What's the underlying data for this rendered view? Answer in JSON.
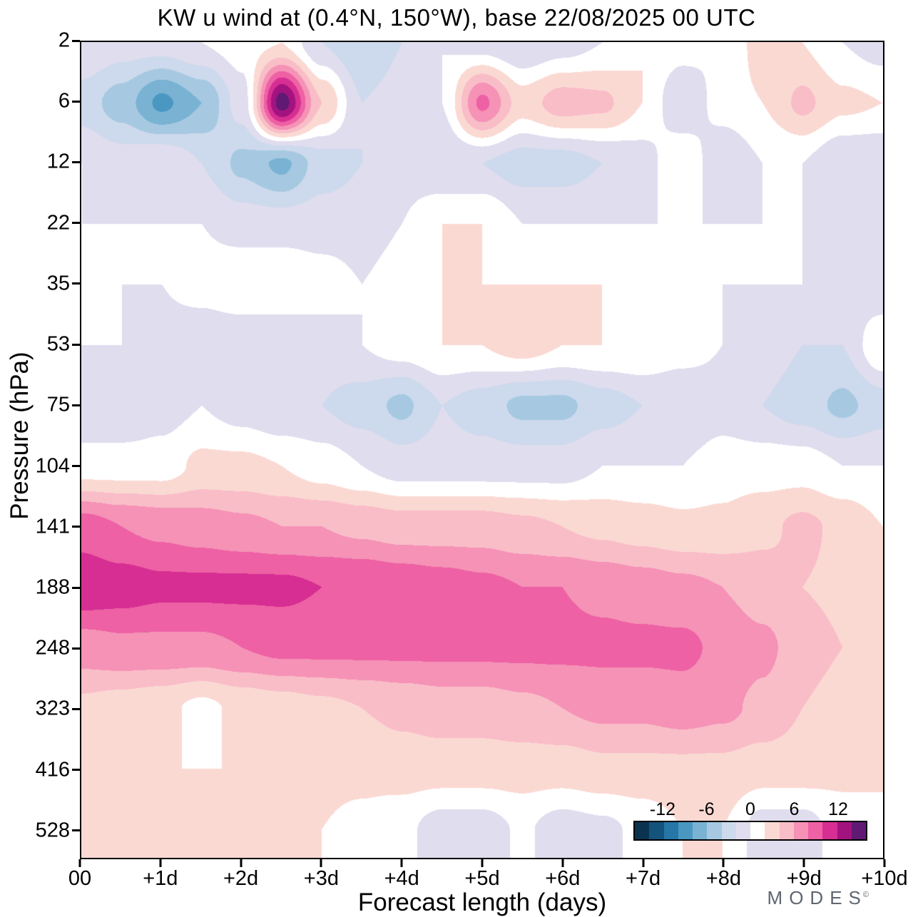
{
  "title": "KW u wind at (0.4°N, 150°W),  base 22/08/2025  00 UTC",
  "axes": {
    "x_label": "Forecast length (days)",
    "y_label": "Pressure (hPa)",
    "x_ticks": [
      "00",
      "+1d",
      "+2d",
      "+3d",
      "+4d",
      "+5d",
      "+6d",
      "+7d",
      "+8d",
      "+9d",
      "+10d"
    ],
    "y_ticks": [
      "2",
      "6",
      "12",
      "22",
      "35",
      "53",
      "75",
      "104",
      "141",
      "188",
      "248",
      "323",
      "416",
      "528"
    ]
  },
  "colorbar": {
    "labels": [
      "-12",
      "-6",
      "0",
      "6",
      "12"
    ],
    "levels": [
      -16,
      -14,
      -12,
      -10,
      -8,
      -6,
      -4,
      -2,
      0,
      2,
      4,
      6,
      8,
      10,
      12,
      14,
      16
    ],
    "colors": [
      "#0a3350",
      "#14537c",
      "#2676a8",
      "#4a97c2",
      "#79b2d3",
      "#a6c9e1",
      "#cdd9ec",
      "#dfddee",
      "#ffffff",
      "#fbd9d3",
      "#f9bdc8",
      "#f592b6",
      "#ee61a4",
      "#d62e92",
      "#a3137f",
      "#601a73"
    ]
  },
  "logo": {
    "text": "MODES",
    "mark": "©"
  },
  "chart_data": {
    "type": "heatmap",
    "title": "KW u wind at (0.4°N, 150°W),  base 22/08/2025  00 UTC",
    "xlabel": "Forecast length (days)",
    "ylabel": "Pressure (hPa)",
    "x_days": [
      0,
      0.5,
      1,
      1.5,
      2,
      2.5,
      3,
      3.5,
      4,
      4.5,
      5,
      5.5,
      6,
      6.5,
      7,
      7.5,
      8,
      8.5,
      9,
      9.5,
      10
    ],
    "y_pressure_hpa": [
      2,
      6,
      12,
      22,
      35,
      53,
      75,
      104,
      141,
      188,
      248,
      323,
      416,
      528
    ],
    "legend_position": "bottom-right",
    "grid": false,
    "contour_levels": [
      -16,
      -14,
      -12,
      -10,
      -8,
      -6,
      -4,
      -2,
      0,
      2,
      4,
      6,
      8,
      10,
      12,
      14,
      16
    ],
    "values": [
      [
        0,
        -1,
        -1,
        0,
        1,
        2,
        -2,
        -4,
        -2,
        0,
        -1,
        -2,
        -1,
        0,
        2,
        1,
        0,
        3,
        2,
        0,
        -1
      ],
      [
        -3,
        -5,
        -8.5,
        -6,
        -1,
        15,
        4,
        -2,
        -1,
        0,
        8.5,
        3,
        5,
        4.5,
        2,
        -2,
        1,
        2,
        4.5,
        2.5,
        2
      ],
      [
        0,
        -1,
        0,
        -2,
        -4.5,
        -6.5,
        -3,
        -2,
        -1,
        -2,
        -2,
        -3,
        -3,
        -2,
        -1,
        2,
        -2,
        0,
        0,
        -2,
        -2
      ],
      [
        0,
        0,
        0,
        0,
        -1,
        -1,
        -1,
        -1,
        0,
        2,
        2,
        0,
        0,
        0,
        0,
        0,
        0,
        0,
        0,
        -2,
        -2
      ],
      [
        0,
        0,
        0,
        1,
        2,
        2,
        1,
        0,
        1,
        2,
        2,
        2,
        2,
        2,
        1,
        0,
        0,
        0,
        0,
        -1,
        -2
      ],
      [
        0,
        0,
        -1,
        -2,
        -2,
        -2,
        -1,
        0,
        1,
        2,
        2,
        3,
        2,
        2,
        2,
        1,
        0,
        -1,
        -2,
        -2,
        2
      ],
      [
        -2,
        -2,
        -1,
        0,
        -1,
        -2,
        -2,
        -3,
        -4.5,
        -2,
        -3,
        -4.5,
        -4.5,
        -3,
        -2,
        -2,
        -1,
        -2,
        -3,
        -4.5,
        -3
      ],
      [
        1,
        1,
        1,
        2.5,
        2.5,
        2,
        1,
        0,
        -1,
        -1,
        -1,
        -1,
        -1,
        0,
        0,
        0,
        1,
        1,
        1,
        0,
        0
      ],
      [
        9,
        8,
        7.5,
        7,
        6.5,
        6,
        6,
        5.5,
        5,
        5,
        5,
        4.5,
        4,
        3.5,
        3,
        2.5,
        2.5,
        3.5,
        4.5,
        3.5,
        2
      ],
      [
        11.5,
        11,
        10.5,
        10.5,
        10.5,
        10.5,
        10,
        10,
        9.5,
        9,
        8.5,
        8,
        8,
        7.5,
        7,
        6.5,
        6,
        5,
        4,
        3.5,
        3
      ],
      [
        7,
        7.5,
        7.5,
        7.5,
        8,
        8.5,
        8.5,
        8.5,
        8.5,
        8.5,
        8.5,
        8.5,
        8.5,
        8.5,
        8.5,
        8.5,
        7.5,
        6.5,
        5,
        4,
        3
      ],
      [
        3.5,
        3,
        2.5,
        1.5,
        2.5,
        3,
        3.5,
        4,
        4.5,
        5,
        5,
        5.5,
        6,
        6.5,
        6.5,
        7,
        6.5,
        5.5,
        4,
        3,
        2.5
      ],
      [
        2.5,
        2.5,
        2,
        2,
        2,
        2.5,
        2.5,
        2.5,
        3,
        3,
        3,
        3,
        3,
        3.5,
        3.5,
        3.5,
        3.5,
        3,
        3,
        2.5,
        2.5
      ],
      [
        2.5,
        2,
        2,
        2,
        2,
        2,
        2,
        1.5,
        0.5,
        -1,
        -1,
        0.3,
        -1,
        -0.5,
        0.5,
        2,
        2,
        -1,
        -1,
        1,
        1
      ]
    ]
  }
}
